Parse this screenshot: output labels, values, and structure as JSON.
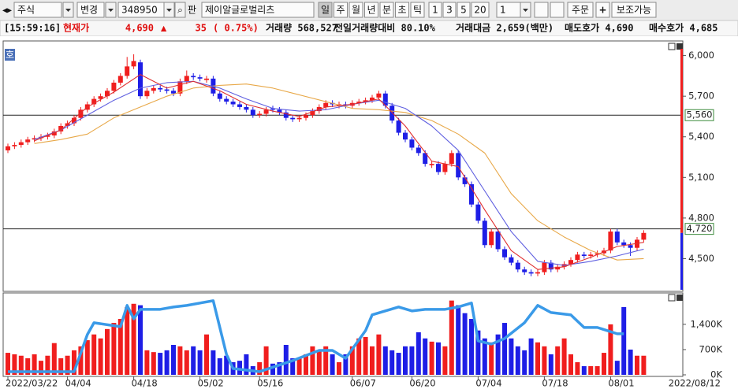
{
  "toolbar": {
    "market": "주식",
    "change": "변경",
    "code": "348950",
    "pan": "판",
    "name": "제이알글로벌리츠",
    "periods": [
      "일",
      "주",
      "월",
      "년",
      "분",
      "초",
      "틱"
    ],
    "intervals": [
      "1",
      "3",
      "5",
      "20"
    ],
    "count": "1",
    "order": "주문",
    "aux": "보조가능"
  },
  "info": {
    "time": "[15:59:16]",
    "price_label": "현재가",
    "price": "4,690",
    "arrow": "▲",
    "change": "35",
    "change_pct": "( 0.75%)",
    "volume": "거래량 568,527",
    "volume_ratio": "전일거래량대비 80.10%",
    "amount": "거래대금 2,659(백만)",
    "ask": "매도호가 4,690",
    "bid": "매수호가 4,685"
  },
  "chart_badge": "호",
  "chart_data": [
    {
      "type": "candlestick",
      "up_color": "#f01e1e",
      "down_color": "#1e1ee6",
      "categories": [
        "2022/03/22",
        null,
        null,
        null,
        null,
        null,
        null,
        null,
        null,
        "04/04",
        null,
        null,
        null,
        null,
        null,
        null,
        null,
        null,
        null,
        "04/18",
        null,
        null,
        null,
        null,
        null,
        null,
        null,
        null,
        null,
        "05/02",
        null,
        null,
        null,
        null,
        null,
        null,
        null,
        null,
        "05/16",
        null,
        null,
        null,
        null,
        null,
        null,
        null,
        null,
        null,
        null,
        null,
        null,
        null,
        "06/07",
        null,
        null,
        null,
        null,
        null,
        null,
        null,
        null,
        "06/20",
        null,
        null,
        null,
        null,
        null,
        null,
        null,
        null,
        null,
        "07/04",
        null,
        null,
        null,
        null,
        null,
        null,
        null,
        null,
        null,
        "07/18",
        null,
        null,
        null,
        null,
        null,
        null,
        null,
        null,
        null,
        "08/01",
        null,
        null,
        null,
        null,
        null
      ],
      "x_end_label": "2022/08/12",
      "open": [
        5300,
        5330,
        5340,
        5360,
        5380,
        5390,
        5400,
        5410,
        5440,
        5480,
        5500,
        5540,
        5600,
        5640,
        5680,
        5700,
        5740,
        5800,
        5850,
        5920,
        5950,
        5700,
        5740,
        5760,
        5750,
        5740,
        5720,
        5810,
        5850,
        5840,
        5820,
        5830,
        5720,
        5680,
        5660,
        5640,
        5620,
        5600,
        5560,
        5570,
        5610,
        5600,
        5580,
        5540,
        5530,
        5540,
        5560,
        5590,
        5620,
        5650,
        5630,
        5640,
        5630,
        5650,
        5660,
        5670,
        5690,
        5720,
        5630,
        5520,
        5430,
        5380,
        5320,
        5280,
        5190,
        5200,
        5140,
        5200,
        5280,
        5100,
        5050,
        4900,
        4780,
        4600,
        4700,
        4570,
        4510,
        4470,
        4420,
        4400,
        4390,
        4400,
        4470,
        4420,
        4440,
        4460,
        4490,
        4530,
        4520,
        4530,
        4540,
        4560,
        4700,
        4620,
        4600,
        4580,
        4640
      ],
      "high": [
        5350,
        5360,
        5380,
        5400,
        5410,
        5420,
        5430,
        5460,
        5500,
        5520,
        5560,
        5620,
        5660,
        5700,
        5720,
        5760,
        5820,
        5870,
        5990,
        6010,
        5970,
        5760,
        5780,
        5780,
        5770,
        5760,
        5830,
        5890,
        5870,
        5860,
        5850,
        5850,
        5740,
        5700,
        5680,
        5660,
        5640,
        5620,
        5590,
        5620,
        5630,
        5620,
        5600,
        5560,
        5560,
        5580,
        5610,
        5640,
        5670,
        5670,
        5660,
        5660,
        5670,
        5680,
        5690,
        5710,
        5740,
        5740,
        5650,
        5540,
        5450,
        5400,
        5340,
        5300,
        5220,
        5220,
        5220,
        5300,
        5300,
        5120,
        5070,
        4920,
        4800,
        4720,
        4720,
        4590,
        4530,
        4490,
        4440,
        4420,
        4420,
        4490,
        4490,
        4460,
        4480,
        4510,
        4550,
        4550,
        4550,
        4560,
        4580,
        4720,
        4720,
        4640,
        4620,
        4660,
        4710
      ],
      "low": [
        5280,
        5310,
        5320,
        5340,
        5360,
        5370,
        5380,
        5390,
        5420,
        5460,
        5480,
        5520,
        5580,
        5620,
        5660,
        5680,
        5720,
        5780,
        5830,
        5900,
        5680,
        5680,
        5720,
        5730,
        5720,
        5700,
        5700,
        5790,
        5820,
        5810,
        5800,
        5700,
        5660,
        5640,
        5620,
        5600,
        5580,
        5540,
        5540,
        5550,
        5580,
        5560,
        5520,
        5510,
        5510,
        5520,
        5540,
        5570,
        5600,
        5620,
        5610,
        5610,
        5610,
        5630,
        5640,
        5650,
        5670,
        5610,
        5500,
        5410,
        5360,
        5300,
        5260,
        5180,
        5170,
        5120,
        5120,
        5180,
        5080,
        5030,
        4880,
        4760,
        4580,
        4580,
        4550,
        4490,
        4450,
        4400,
        4380,
        4370,
        4370,
        4380,
        4400,
        4400,
        4420,
        4440,
        4470,
        4500,
        4500,
        4510,
        4520,
        4540,
        4600,
        4580,
        4520,
        4560,
        4620
      ],
      "close": [
        5330,
        5340,
        5360,
        5380,
        5390,
        5400,
        5410,
        5440,
        5480,
        5500,
        5540,
        5600,
        5640,
        5680,
        5700,
        5740,
        5800,
        5850,
        5920,
        5960,
        5700,
        5740,
        5760,
        5750,
        5740,
        5720,
        5810,
        5850,
        5840,
        5830,
        5830,
        5720,
        5680,
        5660,
        5640,
        5620,
        5600,
        5560,
        5570,
        5600,
        5600,
        5580,
        5540,
        5530,
        5540,
        5560,
        5590,
        5620,
        5650,
        5640,
        5640,
        5630,
        5650,
        5660,
        5670,
        5690,
        5720,
        5630,
        5520,
        5430,
        5380,
        5320,
        5280,
        5200,
        5200,
        5140,
        5200,
        5280,
        5100,
        5050,
        4900,
        4780,
        4600,
        4700,
        4570,
        4510,
        4470,
        4420,
        4400,
        4390,
        4400,
        4470,
        4420,
        4440,
        4460,
        4490,
        4530,
        4520,
        4530,
        4540,
        4560,
        4700,
        4620,
        4600,
        4580,
        4640,
        4690
      ],
      "series": [
        {
          "color": "#e8a848",
          "x": [
            4,
            8,
            12,
            16,
            20,
            24,
            28,
            32,
            36,
            40,
            44,
            48,
            52,
            56,
            60,
            64,
            68,
            72,
            76,
            80,
            84,
            88,
            92,
            96
          ],
          "values": [
            5350,
            5380,
            5420,
            5540,
            5620,
            5700,
            5760,
            5780,
            5790,
            5760,
            5710,
            5660,
            5610,
            5600,
            5580,
            5520,
            5420,
            5280,
            4980,
            4780,
            4660,
            4560,
            4490,
            4500
          ]
        },
        {
          "color": "#6060e0",
          "x": [
            4,
            8,
            12,
            16,
            20,
            24,
            28,
            32,
            36,
            40,
            44,
            48,
            52,
            56,
            60,
            64,
            68,
            72,
            76,
            80,
            84,
            88,
            92,
            96
          ],
          "values": [
            5380,
            5450,
            5560,
            5670,
            5760,
            5800,
            5810,
            5760,
            5680,
            5610,
            5590,
            5600,
            5640,
            5670,
            5610,
            5480,
            5300,
            5000,
            4700,
            4480,
            4450,
            4480,
            4520,
            4570
          ]
        },
        {
          "color": "#e03030",
          "x": [
            4,
            8,
            12,
            16,
            20,
            24,
            28,
            32,
            36,
            40,
            44,
            48,
            52,
            56,
            60,
            64,
            68,
            72,
            76,
            80,
            84,
            88,
            92,
            96
          ],
          "values": [
            5370,
            5450,
            5620,
            5730,
            5860,
            5760,
            5810,
            5740,
            5640,
            5590,
            5550,
            5620,
            5640,
            5680,
            5480,
            5220,
            5180,
            4860,
            4560,
            4420,
            4440,
            4510,
            4590,
            4620
          ]
        }
      ],
      "hlines": [
        {
          "value": 5560,
          "label": "5,560"
        },
        {
          "value": 4720,
          "label": "4,720"
        }
      ],
      "ylim": [
        4270,
        6050
      ],
      "yticks": [
        {
          "value": 6000,
          "label": "6,000"
        },
        {
          "value": 5700,
          "label": "5,700"
        },
        {
          "value": 5400,
          "label": "5,400"
        },
        {
          "value": 5100,
          "label": "5,100"
        },
        {
          "value": 4800,
          "label": "4,800"
        },
        {
          "value": 4500,
          "label": "4,500"
        }
      ]
    },
    {
      "type": "bar",
      "values": [
        610,
        570,
        530,
        460,
        570,
        390,
        530,
        880,
        460,
        530,
        680,
        790,
        960,
        1120,
        1010,
        1270,
        1440,
        1550,
        1880,
        1970,
        1930,
        680,
        630,
        610,
        680,
        830,
        790,
        680,
        790,
        680,
        1120,
        680,
        460,
        530,
        350,
        390,
        570,
        240,
        350,
        790,
        310,
        350,
        830,
        460,
        460,
        570,
        790,
        680,
        790,
        570,
        350,
        570,
        790,
        1010,
        1050,
        790,
        1120,
        790,
        680,
        610,
        790,
        790,
        1180,
        1010,
        920,
        900,
        790,
        2060,
        1930,
        1710,
        1550,
        1230,
        1010,
        900,
        1120,
        1440,
        1010,
        790,
        680,
        1010,
        900,
        790,
        570,
        790,
        1010,
        570,
        350,
        240,
        240,
        240,
        610,
        1400,
        390,
        1880,
        700,
        530,
        530
      ],
      "series": [
        {
          "color": "#3a9ae8",
          "x": [
            0,
            10,
            12,
            13,
            17,
            18,
            19,
            20,
            23,
            25,
            27,
            31,
            33,
            34,
            36,
            38,
            43,
            47,
            49,
            51,
            54,
            55,
            57,
            59,
            61,
            63,
            66,
            68,
            70,
            71,
            73,
            75,
            78,
            80,
            82,
            85,
            87,
            89,
            92,
            93
          ],
          "values": [
            88,
            88,
            1116,
            1444,
            1334,
            1925,
            1553,
            1816,
            1816,
            1881,
            1925,
            2056,
            569,
            175,
            131,
            88,
            394,
            678,
            678,
            459,
            1225,
            1663,
            1772,
            1881,
            1772,
            1816,
            1816,
            1881,
            1991,
            941,
            853,
            1006,
            1444,
            1925,
            1728,
            1663,
            1313,
            1313,
            1138,
            1138
          ]
        }
      ],
      "ylim": [
        0,
        2140
      ],
      "yticks": [
        {
          "value": 1400,
          "label": "1,400K"
        },
        {
          "value": 700,
          "label": "700K"
        },
        {
          "value": 0,
          "label": "0K"
        }
      ]
    }
  ]
}
